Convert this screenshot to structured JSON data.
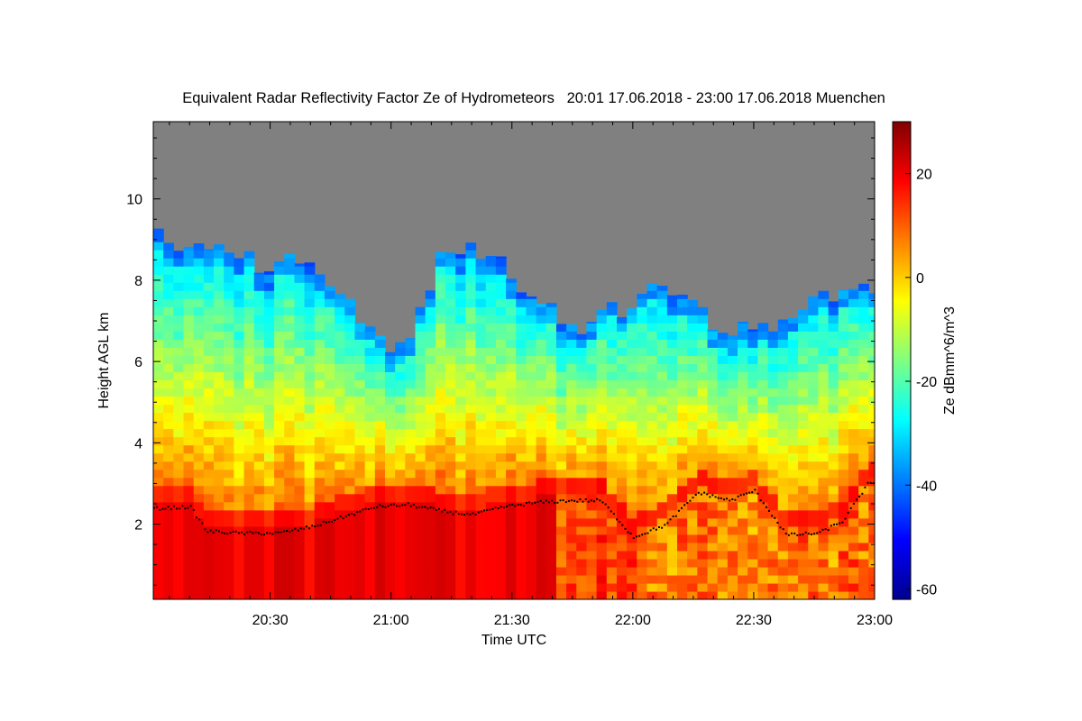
{
  "chart_data": {
    "type": "heatmap",
    "title": "Equivalent Radar Reflectivity Factor Ze of Hydrometeors   20:01 17.06.2018 - 23:00 17.06.2018 Muenchen",
    "xlabel": "Time UTC",
    "ylabel": "Height AGL km",
    "colorbar_label": "Ze dBmm^6/m^3",
    "x_range_minutes": [
      1,
      180
    ],
    "x_ticks": [
      {
        "label": "20:30",
        "minutes": 30
      },
      {
        "label": "21:00",
        "minutes": 60
      },
      {
        "label": "21:30",
        "minutes": 90
      },
      {
        "label": "22:00",
        "minutes": 120
      },
      {
        "label": "22:30",
        "minutes": 150
      },
      {
        "label": "23:00",
        "minutes": 180
      }
    ],
    "ylim": [
      0.15,
      11.9
    ],
    "y_ticks": [
      2,
      4,
      6,
      8,
      10
    ],
    "colorbar_range": [
      -62,
      30
    ],
    "colorbar_ticks": [
      20,
      0,
      -20,
      -40,
      -60
    ],
    "colors": {
      "no_signal": "#808080",
      "colormap": [
        "#00008f",
        "#0000ff",
        "#0080ff",
        "#00ffff",
        "#80ff80",
        "#ffff00",
        "#ff8000",
        "#ff0000",
        "#800000"
      ]
    },
    "cloud_top_km": [
      {
        "t": 1,
        "h": 9.3
      },
      {
        "t": 8,
        "h": 8.7
      },
      {
        "t": 14,
        "h": 9.0
      },
      {
        "t": 20,
        "h": 8.6
      },
      {
        "t": 28,
        "h": 8.4
      },
      {
        "t": 36,
        "h": 8.5
      },
      {
        "t": 44,
        "h": 8.0
      },
      {
        "t": 52,
        "h": 7.2
      },
      {
        "t": 60,
        "h": 6.4
      },
      {
        "t": 66,
        "h": 6.9
      },
      {
        "t": 72,
        "h": 8.6
      },
      {
        "t": 80,
        "h": 8.9
      },
      {
        "t": 88,
        "h": 8.4
      },
      {
        "t": 94,
        "h": 7.6
      },
      {
        "t": 100,
        "h": 7.2
      },
      {
        "t": 106,
        "h": 6.7
      },
      {
        "t": 112,
        "h": 7.4
      },
      {
        "t": 118,
        "h": 7.0
      },
      {
        "t": 124,
        "h": 7.8
      },
      {
        "t": 132,
        "h": 7.5
      },
      {
        "t": 140,
        "h": 7.0
      },
      {
        "t": 148,
        "h": 6.8
      },
      {
        "t": 156,
        "h": 6.9
      },
      {
        "t": 164,
        "h": 7.4
      },
      {
        "t": 172,
        "h": 7.7
      },
      {
        "t": 180,
        "h": 7.9
      }
    ],
    "melting_layer_km": [
      {
        "t": 1,
        "h": 2.4
      },
      {
        "t": 10,
        "h": 2.45
      },
      {
        "t": 14,
        "h": 1.85
      },
      {
        "t": 22,
        "h": 1.8
      },
      {
        "t": 32,
        "h": 1.8
      },
      {
        "t": 40,
        "h": 1.95
      },
      {
        "t": 48,
        "h": 2.2
      },
      {
        "t": 56,
        "h": 2.45
      },
      {
        "t": 64,
        "h": 2.5
      },
      {
        "t": 72,
        "h": 2.35
      },
      {
        "t": 80,
        "h": 2.25
      },
      {
        "t": 88,
        "h": 2.45
      },
      {
        "t": 96,
        "h": 2.55
      },
      {
        "t": 104,
        "h": 2.6
      },
      {
        "t": 112,
        "h": 2.6
      },
      {
        "t": 120,
        "h": 1.7
      },
      {
        "t": 128,
        "h": 2.0
      },
      {
        "t": 136,
        "h": 2.8
      },
      {
        "t": 144,
        "h": 2.6
      },
      {
        "t": 150,
        "h": 2.85
      },
      {
        "t": 158,
        "h": 1.75
      },
      {
        "t": 166,
        "h": 1.8
      },
      {
        "t": 172,
        "h": 2.1
      },
      {
        "t": 178,
        "h": 3.0
      }
    ]
  }
}
